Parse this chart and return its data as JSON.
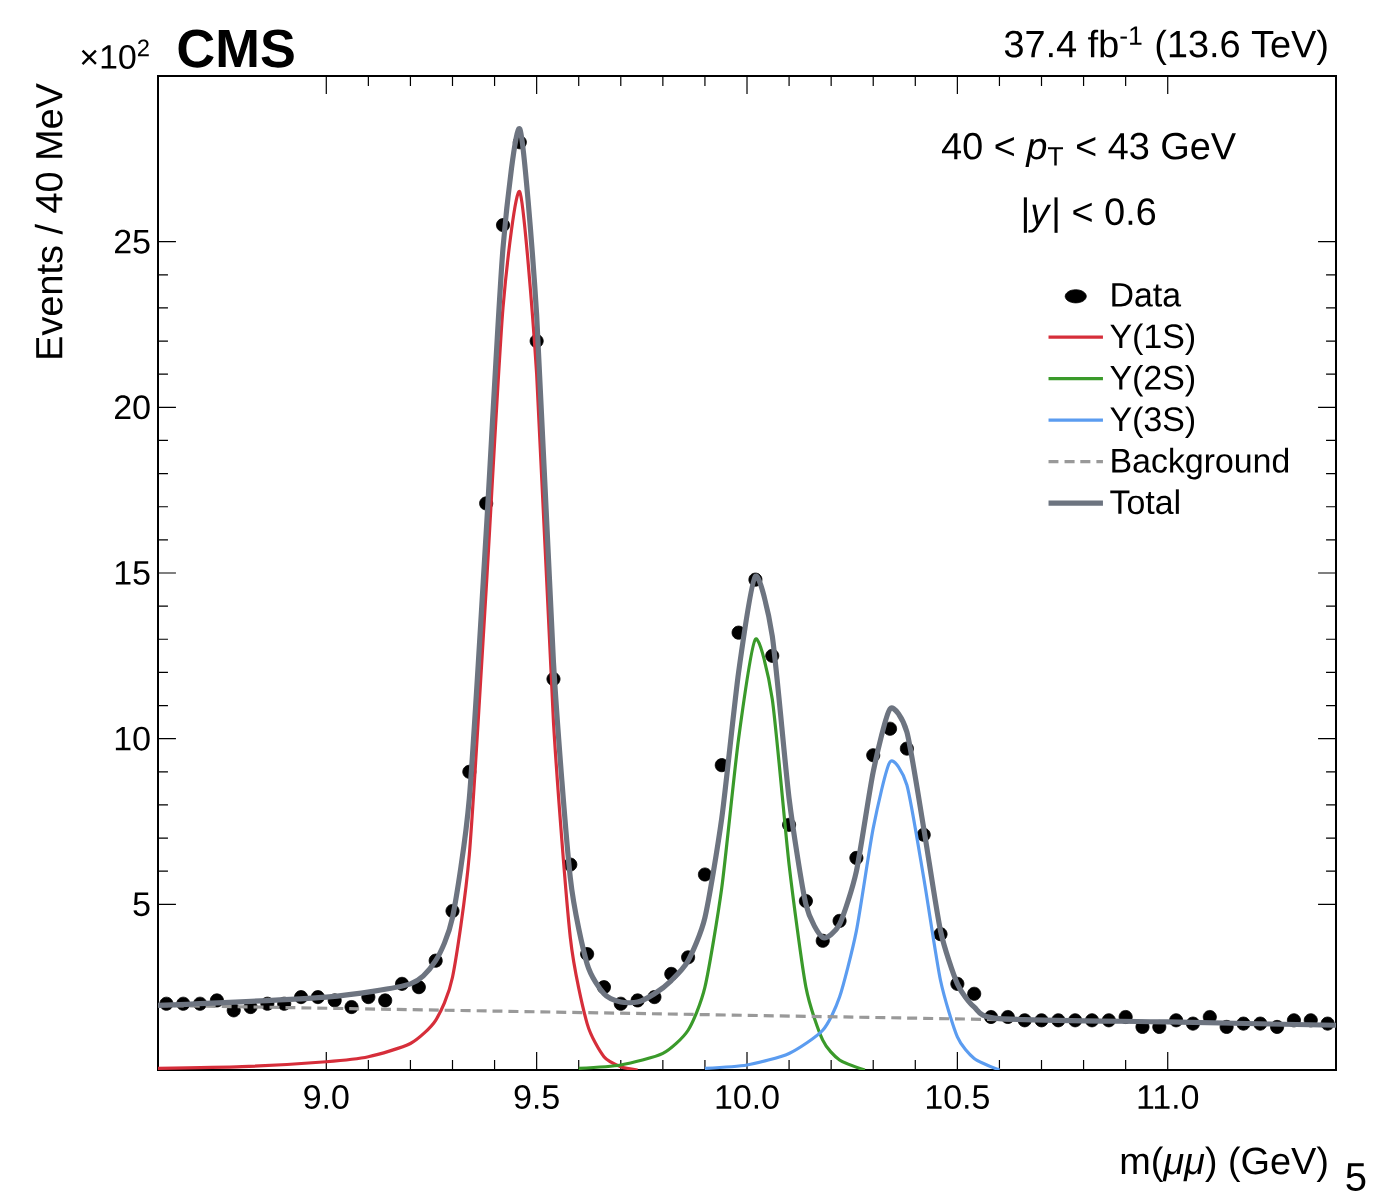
{
  "chart_data": {
    "type": "scatter",
    "title": "CMS",
    "subtitle": "37.4 fb$^{-1}$ (13.6 TeV)",
    "xlabel": "m(*μμ*) (GeV)",
    "ylabel": "Events / 40 MeV",
    "annotations": [
      "×10$^{2}$",
      "40 < *p*$_{T}$ < 43 GeV",
      "|*y*| < 0.6",
      "5"
    ],
    "xlim": [
      8.6,
      11.4
    ],
    "ylim": [
      0,
      30
    ],
    "xticks": [
      {
        "value": 9,
        "label": "9.0"
      },
      {
        "value": 9.5,
        "label": "9.5"
      },
      {
        "value": 10,
        "label": "10.0"
      },
      {
        "value": 10.5,
        "label": "10.5"
      },
      {
        "value": 11,
        "label": "11.0"
      }
    ],
    "yticks": [
      5,
      10,
      15,
      20,
      25
    ],
    "grid": false,
    "legend": "top right",
    "series": [
      {
        "name": "Data",
        "type": "scatter",
        "marker": "circle",
        "color": "#000000",
        "x": [
          8.62,
          8.66,
          8.7,
          8.74,
          8.78,
          8.82,
          8.86,
          8.9,
          8.94,
          8.98,
          9.02,
          9.06,
          9.1,
          9.14,
          9.18,
          9.22,
          9.26,
          9.3,
          9.34,
          9.38,
          9.42,
          9.46,
          9.5,
          9.54,
          9.58,
          9.62,
          9.66,
          9.7,
          9.74,
          9.78,
          9.82,
          9.86,
          9.9,
          9.94,
          9.98,
          10.02,
          10.06,
          10.1,
          10.14,
          10.18,
          10.22,
          10.26,
          10.3,
          10.34,
          10.38,
          10.42,
          10.46,
          10.5,
          10.54,
          10.58,
          10.62,
          10.66,
          10.7,
          10.74,
          10.78,
          10.82,
          10.86,
          10.9,
          10.94,
          10.98,
          11.02,
          11.06,
          11.1,
          11.14,
          11.18,
          11.22,
          11.26,
          11.3,
          11.34,
          11.38
        ],
        "values": [
          2.0,
          2.0,
          2.0,
          2.1,
          1.8,
          1.9,
          2.0,
          2.0,
          2.2,
          2.2,
          2.1,
          1.9,
          2.2,
          2.1,
          2.6,
          2.5,
          3.3,
          4.8,
          9.0,
          17.1,
          25.5,
          28.0,
          22.0,
          11.8,
          6.2,
          3.5,
          2.5,
          2.0,
          2.1,
          2.2,
          2.9,
          3.4,
          5.9,
          9.2,
          13.2,
          14.8,
          12.5,
          7.4,
          5.1,
          3.9,
          4.5,
          6.4,
          9.5,
          10.3,
          9.7,
          7.1,
          4.1,
          2.6,
          2.3,
          1.6,
          1.6,
          1.5,
          1.5,
          1.5,
          1.5,
          1.5,
          1.5,
          1.6,
          1.3,
          1.3,
          1.5,
          1.4,
          1.6,
          1.3,
          1.4,
          1.4,
          1.3,
          1.5,
          1.5,
          1.4
        ]
      },
      {
        "name": "Υ(1S)",
        "type": "line",
        "marker": "none",
        "line_style": "solid",
        "color": "#d62e3a",
        "x": [
          8.6,
          8.8,
          9.0,
          9.1,
          9.2,
          9.26,
          9.3,
          9.34,
          9.38,
          9.42,
          9.46,
          9.5,
          9.54,
          9.58,
          9.62,
          9.66,
          9.7,
          9.74
        ],
        "values": [
          0.05,
          0.1,
          0.25,
          0.4,
          0.8,
          1.5,
          2.8,
          6.5,
          14.5,
          23,
          26.5,
          21,
          10.5,
          4.0,
          1.4,
          0.4,
          0.1,
          0
        ]
      },
      {
        "name": "Υ(2S)",
        "type": "line",
        "marker": "none",
        "line_style": "solid",
        "color": "#3a9a2a",
        "x": [
          9.6,
          9.7,
          9.8,
          9.86,
          9.9,
          9.94,
          9.98,
          10.02,
          10.06,
          10.1,
          10.14,
          10.18,
          10.22,
          10.28
        ],
        "values": [
          0.05,
          0.15,
          0.5,
          1.2,
          2.5,
          5.5,
          10,
          13.0,
          11.2,
          6.2,
          2.5,
          0.9,
          0.3,
          0
        ]
      },
      {
        "name": "Υ(3S)",
        "type": "line",
        "marker": "none",
        "line_style": "solid",
        "color": "#5b9cf0",
        "x": [
          9.9,
          10.0,
          10.1,
          10.18,
          10.22,
          10.26,
          10.3,
          10.34,
          10.38,
          10.42,
          10.46,
          10.5,
          10.54,
          10.6
        ],
        "values": [
          0.05,
          0.15,
          0.5,
          1.2,
          2.2,
          4.2,
          7.3,
          9.3,
          8.6,
          5.8,
          2.7,
          1.0,
          0.35,
          0
        ]
      },
      {
        "name": "Background",
        "type": "line",
        "marker": "none",
        "line_style": "dashed",
        "color": "#999999",
        "x": [
          8.6,
          11.4
        ],
        "values": [
          1.95,
          1.35
        ]
      },
      {
        "name": "Total",
        "type": "line",
        "marker": "none",
        "line_style": "solid",
        "color": "#6d7480",
        "x": [
          8.6,
          9.0,
          9.2,
          9.26,
          9.3,
          9.34,
          9.38,
          9.42,
          9.46,
          9.5,
          9.54,
          9.58,
          9.62,
          9.66,
          9.7,
          9.74,
          9.78,
          9.82,
          9.86,
          9.9,
          9.94,
          9.98,
          10.02,
          10.06,
          10.1,
          10.14,
          10.18,
          10.22,
          10.26,
          10.3,
          10.34,
          10.38,
          10.42,
          10.46,
          10.5,
          10.54,
          10.6,
          11.0,
          11.4
        ],
        "values": [
          1.95,
          2.2,
          2.6,
          3.3,
          4.6,
          8.2,
          16.2,
          24.8,
          28.4,
          22.8,
          12.3,
          5.8,
          3.2,
          2.3,
          2.05,
          2.05,
          2.3,
          2.7,
          3.3,
          4.6,
          7.6,
          12.0,
          14.9,
          13.1,
          8.2,
          5.0,
          4.0,
          4.4,
          6.0,
          9.0,
          10.9,
          10.2,
          7.3,
          4.2,
          2.6,
          1.9,
          1.55,
          1.45,
          1.35
        ]
      }
    ]
  }
}
